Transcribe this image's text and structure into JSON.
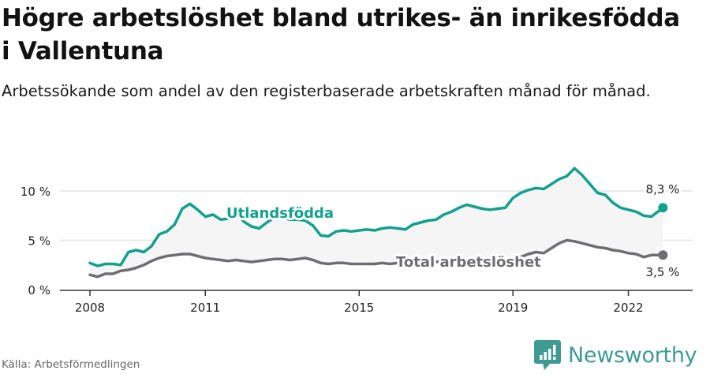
{
  "header": {
    "title": "Högre arbetslöshet bland utrikes- än inrikesfödda i Vallentuna",
    "subtitle": "Arbetssökande som andel av den registerbaserade arbetskraften månad för månad."
  },
  "footer": {
    "source": "Källa: Arbetsförmedlingen",
    "brand": "Newsworthy"
  },
  "colors": {
    "foreign_born": "#12a08e",
    "total": "#6e6d72",
    "band_fill": "#f5f5f5",
    "grid": "#e2e2e2",
    "axis": "#333333",
    "brand": "#3f9a94"
  },
  "chart_data": {
    "type": "line",
    "title": "Högre arbetslöshet bland utrikes- än inrikesfödda i Vallentuna",
    "subtitle": "Arbetssökande som andel av den registerbaserade arbetskraften månad för månad.",
    "xlabel": "",
    "ylabel": "",
    "y_ticks": [
      0,
      5,
      10
    ],
    "y_tick_labels": [
      "0 %",
      "5 %",
      "10 %"
    ],
    "x_ticks": [
      2008,
      2011,
      2015,
      2019,
      2022
    ],
    "x_tick_labels": [
      "2008",
      "2011",
      "2015",
      "2019",
      "2022"
    ],
    "ylim": [
      0,
      12.5
    ],
    "xlim": [
      2007.8,
      2023.3
    ],
    "grid": true,
    "legend": "inline labels",
    "series": [
      {
        "name": "Utlandsfödda",
        "label": "Utlandsfödda",
        "end_label": "8,3 %",
        "x": [
          2008.0,
          2008.2,
          2008.4,
          2008.6,
          2008.8,
          2009.0,
          2009.2,
          2009.4,
          2009.6,
          2009.8,
          2010.0,
          2010.2,
          2010.4,
          2010.6,
          2010.8,
          2011.0,
          2011.2,
          2011.4,
          2011.6,
          2011.8,
          2012.0,
          2012.2,
          2012.4,
          2012.6,
          2012.8,
          2013.0,
          2013.2,
          2013.4,
          2013.6,
          2013.8,
          2014.0,
          2014.2,
          2014.4,
          2014.6,
          2014.8,
          2015.0,
          2015.2,
          2015.4,
          2015.6,
          2015.8,
          2016.0,
          2016.2,
          2016.4,
          2016.6,
          2016.8,
          2017.0,
          2017.2,
          2017.4,
          2017.6,
          2017.8,
          2018.0,
          2018.2,
          2018.4,
          2018.6,
          2018.8,
          2019.0,
          2019.2,
          2019.4,
          2019.6,
          2019.8,
          2020.0,
          2020.2,
          2020.4,
          2020.6,
          2020.8,
          2021.0,
          2021.2,
          2021.4,
          2021.6,
          2021.8,
          2022.0,
          2022.2,
          2022.4,
          2022.6,
          2022.9
        ],
        "values": [
          2.7,
          2.4,
          2.6,
          2.6,
          2.5,
          3.8,
          4.0,
          3.8,
          4.4,
          5.6,
          5.9,
          6.6,
          8.2,
          8.7,
          8.1,
          7.4,
          7.6,
          7.1,
          7.2,
          7.9,
          6.9,
          6.4,
          6.2,
          6.8,
          7.3,
          7.3,
          7.1,
          7.1,
          7.0,
          6.5,
          5.5,
          5.4,
          5.9,
          6.0,
          5.9,
          6.0,
          6.1,
          6.0,
          6.2,
          6.3,
          6.2,
          6.1,
          6.6,
          6.8,
          7.0,
          7.1,
          7.6,
          7.9,
          8.3,
          8.6,
          8.4,
          8.2,
          8.1,
          8.2,
          8.3,
          9.3,
          9.8,
          10.1,
          10.3,
          10.2,
          10.7,
          11.2,
          11.5,
          12.3,
          11.6,
          10.7,
          9.8,
          9.6,
          8.8,
          8.3,
          8.1,
          7.9,
          7.5,
          7.4,
          8.3
        ]
      },
      {
        "name": "Total arbetslöshet",
        "label": "Total arbetslöshet",
        "end_label": "3,5 %",
        "x": [
          2008.0,
          2008.2,
          2008.4,
          2008.6,
          2008.8,
          2009.0,
          2009.2,
          2009.4,
          2009.6,
          2009.8,
          2010.0,
          2010.2,
          2010.4,
          2010.6,
          2010.8,
          2011.0,
          2011.2,
          2011.4,
          2011.6,
          2011.8,
          2012.0,
          2012.2,
          2012.4,
          2012.6,
          2012.8,
          2013.0,
          2013.2,
          2013.4,
          2013.6,
          2013.8,
          2014.0,
          2014.2,
          2014.4,
          2014.6,
          2014.8,
          2015.0,
          2015.2,
          2015.4,
          2015.6,
          2015.8,
          2016.0,
          2016.2,
          2016.4,
          2016.6,
          2016.8,
          2017.0,
          2017.2,
          2017.4,
          2017.6,
          2017.8,
          2018.0,
          2018.2,
          2018.4,
          2018.6,
          2018.8,
          2019.0,
          2019.2,
          2019.4,
          2019.6,
          2019.8,
          2020.0,
          2020.2,
          2020.4,
          2020.6,
          2020.8,
          2021.0,
          2021.2,
          2021.4,
          2021.6,
          2021.8,
          2022.0,
          2022.2,
          2022.4,
          2022.6,
          2022.9
        ],
        "values": [
          1.5,
          1.3,
          1.6,
          1.6,
          1.9,
          2.0,
          2.2,
          2.5,
          2.9,
          3.2,
          3.4,
          3.5,
          3.6,
          3.6,
          3.4,
          3.2,
          3.1,
          3.0,
          2.9,
          3.0,
          2.9,
          2.8,
          2.9,
          3.0,
          3.1,
          3.1,
          3.0,
          3.1,
          3.2,
          3.0,
          2.7,
          2.6,
          2.7,
          2.7,
          2.6,
          2.6,
          2.6,
          2.6,
          2.7,
          2.6,
          2.7,
          2.7,
          2.8,
          2.8,
          2.8,
          2.8,
          2.9,
          2.9,
          3.0,
          3.0,
          3.0,
          3.0,
          2.9,
          2.9,
          3.0,
          3.1,
          3.3,
          3.6,
          3.8,
          3.7,
          4.2,
          4.7,
          5.0,
          4.9,
          4.7,
          4.5,
          4.3,
          4.2,
          4.0,
          3.9,
          3.7,
          3.6,
          3.3,
          3.5,
          3.5
        ]
      }
    ],
    "annotations": [
      {
        "text": "Utlandsfödda",
        "series": "Utlandsfödda",
        "x": 2011.55,
        "y": 7.8
      },
      {
        "text": "Total arbetslöshet",
        "series": "Total arbetslöshet",
        "x": 2015.95,
        "y": 2.9
      },
      {
        "text": "8,3 %",
        "x": 2022.9,
        "y": 10.0
      },
      {
        "text": "3,5 %",
        "x": 2022.9,
        "y": 1.8
      }
    ]
  }
}
